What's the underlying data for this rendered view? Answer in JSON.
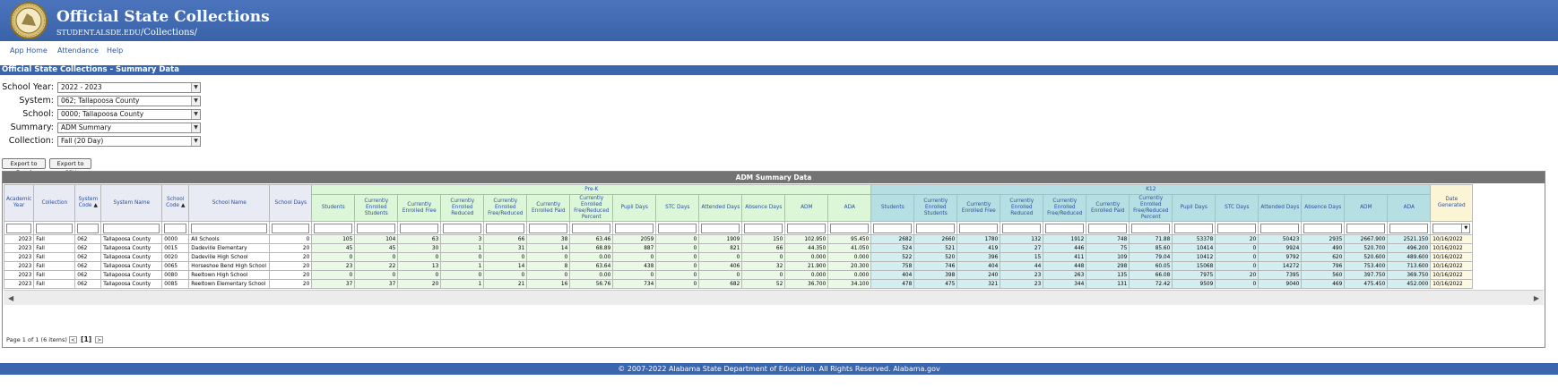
{
  "header": {
    "title": "Official State Collections",
    "url_prefix": "student.alsde.edu",
    "url_path": "/Collections/"
  },
  "nav": {
    "items": [
      "App Home",
      "Attendance",
      "Help"
    ]
  },
  "page_title": "Official State Collections - Summary Data",
  "filters": [
    {
      "label": "School Year:",
      "value": "2022 - 2023"
    },
    {
      "label": "System:",
      "value": "062; Tallapoosa County"
    },
    {
      "label": "School:",
      "value": "0000; Tallapoosa County"
    },
    {
      "label": "Summary:",
      "value": "ADM Summary"
    },
    {
      "label": "Collection:",
      "value": "Fall (20 Day)"
    }
  ],
  "buttons": {
    "export_excel": "Export to Excel",
    "export_csv": "Export to CSV"
  },
  "grid": {
    "title": "ADM Summary Data",
    "group_prek": "Pre-K",
    "group_k12": "K12",
    "base_headers": [
      "Academic Year",
      "Collection",
      "System Code",
      "System Name",
      "School Code",
      "School Name",
      "School Days"
    ],
    "metric_headers": [
      "Students",
      "Currently Enrolled Students",
      "Currently Enrolled Free",
      "Currently Enrolled Reduced",
      "Currently Enrolled Free/Reduced",
      "Currently Enrolled Paid",
      "Currently Enrolled Free/Reduced Percent",
      "Pupil Days",
      "STC Days",
      "Attended Days",
      "Absence Days",
      "ADM",
      "ADA"
    ],
    "date_header": "Date Generated",
    "sort_arrow": "▲",
    "rows": [
      {
        "base": [
          "2023",
          "Fall",
          "062",
          "Tallapoosa County",
          "0000",
          "All Schools",
          "0"
        ],
        "prek": [
          "105",
          "104",
          "63",
          "3",
          "66",
          "38",
          "63.46",
          "2059",
          "0",
          "1909",
          "150",
          "102.950",
          "95.450"
        ],
        "k12": [
          "2682",
          "2660",
          "1780",
          "132",
          "1912",
          "748",
          "71.88",
          "53378",
          "20",
          "50423",
          "2935",
          "2667.900",
          "2521.150"
        ],
        "date": "10/16/2022"
      },
      {
        "base": [
          "2023",
          "Fall",
          "062",
          "Tallapoosa County",
          "0015",
          "Dadeville Elementary",
          "20"
        ],
        "prek": [
          "45",
          "45",
          "30",
          "1",
          "31",
          "14",
          "68.89",
          "887",
          "0",
          "821",
          "66",
          "44.350",
          "41.050"
        ],
        "k12": [
          "524",
          "521",
          "419",
          "27",
          "446",
          "75",
          "85.60",
          "10414",
          "0",
          "9924",
          "490",
          "520.700",
          "496.200"
        ],
        "date": "10/16/2022"
      },
      {
        "base": [
          "2023",
          "Fall",
          "062",
          "Tallapoosa County",
          "0020",
          "Dadeville High School",
          "20"
        ],
        "prek": [
          "0",
          "0",
          "0",
          "0",
          "0",
          "0",
          "0.00",
          "0",
          "0",
          "0",
          "0",
          "0.000",
          "0.000"
        ],
        "k12": [
          "522",
          "520",
          "396",
          "15",
          "411",
          "109",
          "79.04",
          "10412",
          "0",
          "9792",
          "620",
          "520.600",
          "489.600"
        ],
        "date": "10/16/2022"
      },
      {
        "base": [
          "2023",
          "Fall",
          "062",
          "Tallapoosa County",
          "0065",
          "Horseshoe Bend High School",
          "20"
        ],
        "prek": [
          "23",
          "22",
          "13",
          "1",
          "14",
          "8",
          "63.64",
          "438",
          "0",
          "406",
          "32",
          "21.900",
          "20.300"
        ],
        "k12": [
          "758",
          "746",
          "404",
          "44",
          "448",
          "298",
          "60.05",
          "15068",
          "0",
          "14272",
          "796",
          "753.400",
          "713.600"
        ],
        "date": "10/16/2022"
      },
      {
        "base": [
          "2023",
          "Fall",
          "062",
          "Tallapoosa County",
          "0080",
          "Reeltown High School",
          "20"
        ],
        "prek": [
          "0",
          "0",
          "0",
          "0",
          "0",
          "0",
          "0.00",
          "0",
          "0",
          "0",
          "0",
          "0.000",
          "0.000"
        ],
        "k12": [
          "404",
          "398",
          "240",
          "23",
          "263",
          "135",
          "66.08",
          "7975",
          "20",
          "7395",
          "560",
          "397.750",
          "369.750"
        ],
        "date": "10/16/2022"
      },
      {
        "base": [
          "2023",
          "Fall",
          "062",
          "Tallapoosa County",
          "0085",
          "Reeltown Elementary School",
          "20"
        ],
        "prek": [
          "37",
          "37",
          "20",
          "1",
          "21",
          "16",
          "56.76",
          "734",
          "0",
          "682",
          "52",
          "36.700",
          "34.100"
        ],
        "k12": [
          "478",
          "475",
          "321",
          "23",
          "344",
          "131",
          "72.42",
          "9509",
          "0",
          "9040",
          "469",
          "475.450",
          "452.000"
        ],
        "date": "10/16/2022"
      }
    ]
  },
  "pager": {
    "text": "Page 1 of 1 (6 items)",
    "prev": "<",
    "current": "[1]",
    "next": ">"
  },
  "scroll": {
    "left": "◀",
    "right": "▶"
  },
  "footer": {
    "text": "© 2007-2022 Alabama State Department of Education.   All Rights Reserved.   Alabama.gov"
  }
}
